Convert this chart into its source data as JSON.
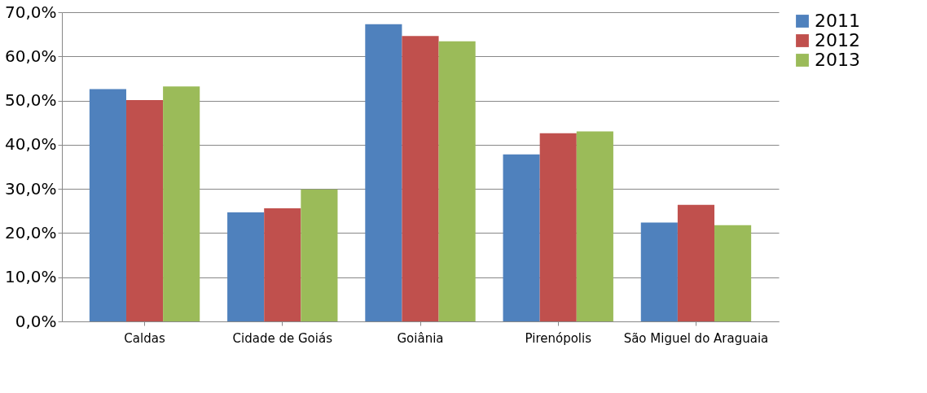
{
  "chart_data": {
    "type": "bar",
    "categories": [
      "Caldas",
      "Cidade de Goiás",
      "Goiânia",
      "Pirenópolis",
      "São Miguel do Araguaia"
    ],
    "series": [
      {
        "name": "2011",
        "color": "#4f81bd",
        "values": [
          52.6,
          24.7,
          67.3,
          37.8,
          22.4
        ]
      },
      {
        "name": "2012",
        "color": "#c0504d",
        "values": [
          50.1,
          25.6,
          64.6,
          42.6,
          26.4
        ]
      },
      {
        "name": "2013",
        "color": "#9bbb59",
        "values": [
          53.2,
          29.9,
          63.4,
          43.0,
          21.8
        ]
      }
    ],
    "ylim": [
      0,
      70
    ],
    "yticks": [
      {
        "value": 0,
        "label": "0,0%"
      },
      {
        "value": 10,
        "label": "10,0%"
      },
      {
        "value": 20,
        "label": "20,0%"
      },
      {
        "value": 30,
        "label": "30,0%"
      },
      {
        "value": 40,
        "label": "40,0%"
      },
      {
        "value": 50,
        "label": "50,0%"
      },
      {
        "value": 60,
        "label": "60,0%"
      },
      {
        "value": 70,
        "label": "70,0%"
      }
    ],
    "grid": "y",
    "legend": "right"
  }
}
